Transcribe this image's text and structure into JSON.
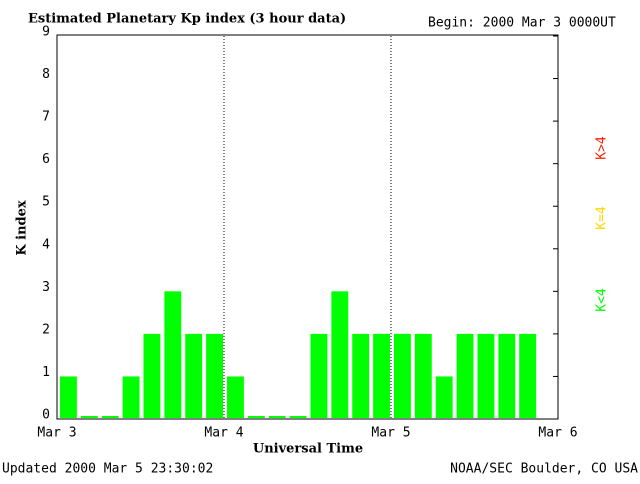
{
  "chart_data": {
    "type": "bar",
    "title": "Estimated Planetary Kp index (3 hour data)",
    "begin": "Begin:  2000 Mar 3 0000UT",
    "x_label": "Universal Time",
    "y_label": "K index",
    "categories": [
      null,
      null,
      null,
      null,
      null,
      null,
      null,
      null,
      null,
      null,
      null,
      null,
      null,
      null,
      null,
      null,
      null,
      null,
      null,
      null,
      null,
      null,
      null,
      null
    ],
    "values": [
      1,
      0,
      0,
      1,
      2,
      3,
      2,
      2,
      1,
      0,
      0,
      0,
      2,
      3,
      2,
      2,
      2,
      2,
      1,
      2,
      2,
      2,
      2,
      null
    ],
    "color": "#00ff00",
    "ylim": [
      0,
      9
    ],
    "yticks": [
      0,
      1,
      2,
      3,
      4,
      5,
      6,
      7,
      8,
      9
    ],
    "xlim": [
      0,
      24
    ],
    "xticks": [
      {
        "value": 0,
        "label": "Mar 3"
      },
      {
        "value": 8,
        "label": "Mar 4"
      },
      {
        "value": 16,
        "label": "Mar 5"
      },
      {
        "value": 24,
        "label": "Mar 6"
      }
    ],
    "x_grid": true,
    "legend": [
      {
        "label": "K<4",
        "color": "#00ff00"
      },
      {
        "label": "K=4",
        "color": "#ffd700"
      },
      {
        "label": "K>4",
        "color": "#ff2000"
      }
    ],
    "updated": "Updated 2000 Mar  5 23:30:02",
    "source": "NOAA/SEC Boulder, CO USA"
  }
}
